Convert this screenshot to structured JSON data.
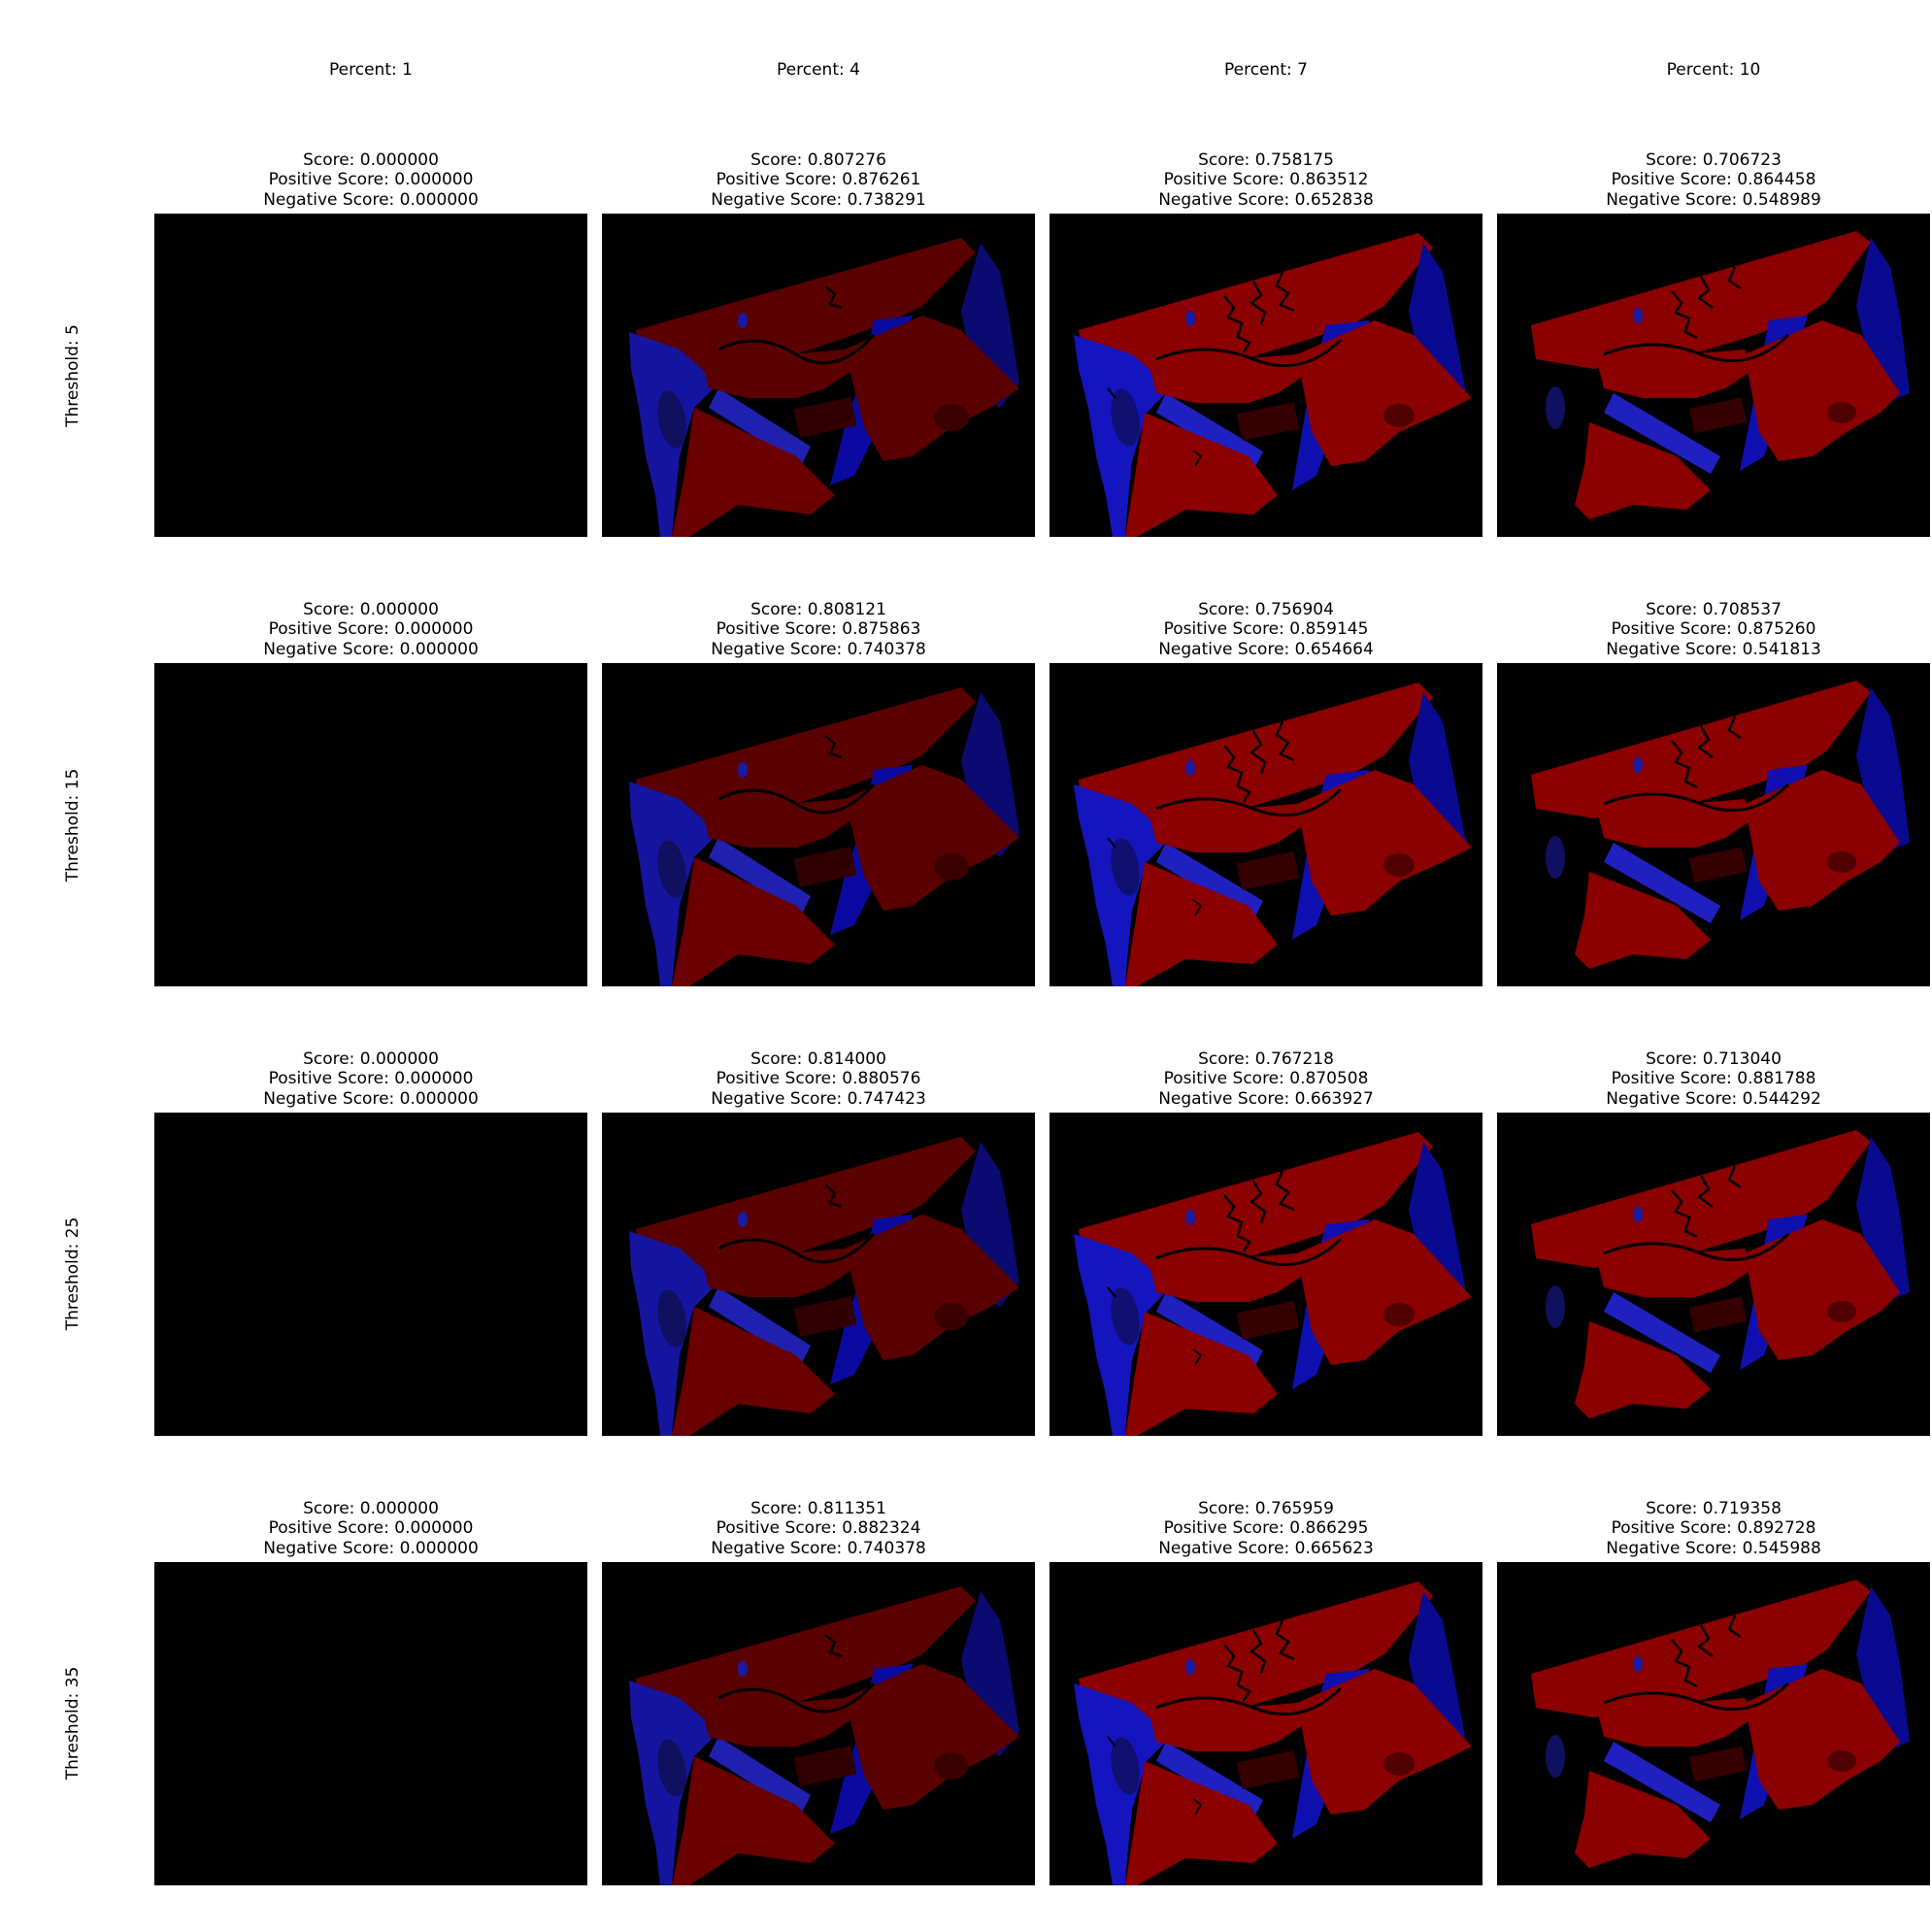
{
  "percent_labels": [
    "Percent: 1",
    "Percent: 4",
    "Percent: 7",
    "Percent: 10"
  ],
  "threshold_labels": [
    "Threshold: 5",
    "Threshold: 15",
    "Threshold: 25",
    "Threshold: 35"
  ],
  "colors": {
    "background": "#000000",
    "red_region": "#8b0000",
    "blue_region": "#00008b"
  },
  "rows": [
    {
      "cells": [
        {
          "score": "Score: 0.000000",
          "positive": "Positive Score: 0.000000",
          "negative": "Negative Score: 0.000000"
        },
        {
          "score": "Score: 0.807276",
          "positive": "Positive Score: 0.876261",
          "negative": "Negative Score: 0.738291"
        },
        {
          "score": "Score: 0.758175",
          "positive": "Positive Score: 0.863512",
          "negative": "Negative Score: 0.652838"
        },
        {
          "score": "Score: 0.706723",
          "positive": "Positive Score: 0.864458",
          "negative": "Negative Score: 0.548989"
        }
      ]
    },
    {
      "cells": [
        {
          "score": "Score: 0.000000",
          "positive": "Positive Score: 0.000000",
          "negative": "Negative Score: 0.000000"
        },
        {
          "score": "Score: 0.808121",
          "positive": "Positive Score: 0.875863",
          "negative": "Negative Score: 0.740378"
        },
        {
          "score": "Score: 0.756904",
          "positive": "Positive Score: 0.859145",
          "negative": "Negative Score: 0.654664"
        },
        {
          "score": "Score: 0.708537",
          "positive": "Positive Score: 0.875260",
          "negative": "Negative Score: 0.541813"
        }
      ]
    },
    {
      "cells": [
        {
          "score": "Score: 0.000000",
          "positive": "Positive Score: 0.000000",
          "negative": "Negative Score: 0.000000"
        },
        {
          "score": "Score: 0.814000",
          "positive": "Positive Score: 0.880576",
          "negative": "Negative Score: 0.747423"
        },
        {
          "score": "Score: 0.767218",
          "positive": "Positive Score: 0.870508",
          "negative": "Negative Score: 0.663927"
        },
        {
          "score": "Score: 0.713040",
          "positive": "Positive Score: 0.881788",
          "negative": "Negative Score: 0.544292"
        }
      ]
    },
    {
      "cells": [
        {
          "score": "Score: 0.000000",
          "positive": "Positive Score: 0.000000",
          "negative": "Negative Score: 0.000000"
        },
        {
          "score": "Score: 0.811351",
          "positive": "Positive Score: 0.882324",
          "negative": "Negative Score: 0.740378"
        },
        {
          "score": "Score: 0.765959",
          "positive": "Positive Score: 0.866295",
          "negative": "Negative Score: 0.665623"
        },
        {
          "score": "Score: 0.719358",
          "positive": "Positive Score: 0.892728",
          "negative": "Negative Score: 0.545988"
        }
      ]
    }
  ]
}
